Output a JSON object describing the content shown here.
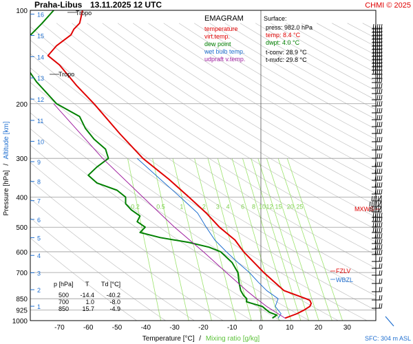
{
  "header": {
    "station": "Praha-Libus",
    "datetime": "13.11.2025 12 UTC",
    "credit": "CHMI © 2025"
  },
  "legend": {
    "title": "EMAGRAM",
    "items": [
      {
        "label": "temperature",
        "color": "#e00000"
      },
      {
        "label": "virt.temp.",
        "color": "#e00000"
      },
      {
        "label": "dew point",
        "color": "#008000"
      },
      {
        "label": "wet bulb temp.",
        "color": "#1f6fd0"
      },
      {
        "label": "udpraft v.temp.",
        "color": "#a020a0"
      }
    ]
  },
  "surface": {
    "title": "Surface:",
    "press": "press: 982.0 hPa",
    "temp": "temp: 8.4 °C",
    "dwpt": "dwpt: 4.0 °C",
    "tconv": "t-conv: 28.9 °C",
    "tmxfc": "t-mxfc: 29.8 °C"
  },
  "table": {
    "headers": [
      "p [hPa]",
      "T",
      "Td [°C]"
    ],
    "rows": [
      [
        "500",
        "-14.4",
        "-40.2"
      ],
      [
        "700",
        "1.0",
        "-8.0"
      ],
      [
        "850",
        "15.7",
        "-4.9"
      ]
    ]
  },
  "markers": {
    "mxws": "MXWS",
    "fzlv": "FZLV",
    "wbzl": "WBZL",
    "tropo": "Tropo",
    "sfc": "SFC: 304 m ASL"
  },
  "axes": {
    "xlabel": "Temperature [°C]",
    "xlabel_sep": "/",
    "xlabel2": "Mixing ratio [g/kg]",
    "ylabel": "Pressure [hPa]",
    "ylabel_sep": "/",
    "ylabel2": "Altitude [km]"
  },
  "colors": {
    "temperature": "#e00000",
    "dewpoint": "#008000",
    "wetbulb": "#1f6fd0",
    "parcel": "#a020a0",
    "mixing": "#9be36b",
    "altitude": "#1f6fd0",
    "grid": "#999999"
  },
  "chart_data": {
    "type": "line",
    "title": "Praha-Libus 13.11.2025 12 UTC",
    "xlabel": "Temperature [°C] / Mixing ratio [g/kg]",
    "ylabel": "Pressure [hPa] / Altitude [km]",
    "xlim": [
      -80,
      40
    ],
    "ylim": [
      1000,
      100
    ],
    "y_scale": "log",
    "grid": true,
    "x_ticks": [
      -70,
      -60,
      -50,
      -40,
      -30,
      -20,
      -10,
      0,
      10,
      20,
      30
    ],
    "pressure_ticks": [
      100,
      200,
      300,
      400,
      500,
      600,
      700,
      850,
      925,
      1000
    ],
    "altitude_ticks_km": [
      1,
      2,
      3,
      4,
      5,
      6,
      7,
      8,
      9,
      10,
      11,
      12,
      13,
      14,
      15,
      16
    ],
    "mixing_ratio_lines_gkg": [
      0.2,
      0.5,
      1,
      2,
      3,
      4,
      6,
      8,
      10,
      12,
      15,
      20,
      25
    ],
    "series": [
      {
        "name": "temperature",
        "points": [
          [
            982,
            8.4
          ],
          [
            950,
            12.5
          ],
          [
            925,
            15.0
          ],
          [
            900,
            17.0
          ],
          [
            880,
            17.5
          ],
          [
            860,
            17.0
          ],
          [
            850,
            15.7
          ],
          [
            800,
            8.0
          ],
          [
            700,
            1.0
          ],
          [
            600,
            -6.0
          ],
          [
            550,
            -9.0
          ],
          [
            500,
            -14.4
          ],
          [
            450,
            -19.0
          ],
          [
            400,
            -25.0
          ],
          [
            350,
            -32.0
          ],
          [
            300,
            -41.0
          ],
          [
            250,
            -49.0
          ],
          [
            200,
            -58.0
          ],
          [
            175,
            -64.0
          ],
          [
            150,
            -70.0
          ],
          [
            140,
            -74.0
          ],
          [
            130,
            -71.0
          ],
          [
            120,
            -66.0
          ],
          [
            115,
            -65.0
          ],
          [
            110,
            -63.0
          ],
          [
            105,
            -62.5
          ],
          [
            100,
            -62.0
          ]
        ]
      },
      {
        "name": "dew point",
        "points": [
          [
            982,
            4.0
          ],
          [
            960,
            5.5
          ],
          [
            940,
            3.0
          ],
          [
            925,
            2.0
          ],
          [
            900,
            0.5
          ],
          [
            870,
            -5.0
          ],
          [
            850,
            -4.9
          ],
          [
            830,
            -6.0
          ],
          [
            800,
            -7.0
          ],
          [
            760,
            -7.5
          ],
          [
            700,
            -8.0
          ],
          [
            650,
            -10.0
          ],
          [
            600,
            -14.0
          ],
          [
            580,
            -18.0
          ],
          [
            560,
            -25.0
          ],
          [
            540,
            -35.0
          ],
          [
            520,
            -42.0
          ],
          [
            500,
            -40.2
          ],
          [
            480,
            -43.0
          ],
          [
            460,
            -42.0
          ],
          [
            440,
            -45.0
          ],
          [
            420,
            -47.0
          ],
          [
            400,
            -47.0
          ],
          [
            380,
            -50.0
          ],
          [
            360,
            -57.0
          ],
          [
            340,
            -60.0
          ],
          [
            320,
            -57.0
          ],
          [
            300,
            -53.0
          ],
          [
            280,
            -54.0
          ],
          [
            260,
            -58.0
          ],
          [
            240,
            -61.0
          ],
          [
            220,
            -63.0
          ],
          [
            200,
            -71.0
          ],
          [
            170,
            -78.0
          ],
          [
            150,
            -82.0
          ],
          [
            140,
            -85.0
          ],
          [
            130,
            -84.0
          ],
          [
            120,
            -80.0
          ],
          [
            110,
            -76.0
          ],
          [
            100,
            -72.0
          ]
        ]
      },
      {
        "name": "wet bulb temp.",
        "points": [
          [
            982,
            6.0
          ],
          [
            950,
            7.0
          ],
          [
            900,
            5.0
          ],
          [
            850,
            6.0
          ],
          [
            800,
            2.0
          ],
          [
            750,
            -1.0
          ],
          [
            700,
            -4.0
          ],
          [
            650,
            -8.0
          ],
          [
            600,
            -12.0
          ],
          [
            550,
            -16.0
          ],
          [
            500,
            -19.0
          ],
          [
            450,
            -22.0
          ],
          [
            400,
            -28.0
          ],
          [
            350,
            -35.0
          ],
          [
            300,
            -43.0
          ]
        ]
      },
      {
        "name": "udpraft v.temp.",
        "points": [
          [
            982,
            8.4
          ],
          [
            950,
            6.0
          ],
          [
            900,
            2.0
          ],
          [
            850,
            -1.5
          ],
          [
            800,
            -5.0
          ],
          [
            700,
            -12.0
          ],
          [
            600,
            -20.0
          ],
          [
            500,
            -30.0
          ],
          [
            400,
            -41.0
          ],
          [
            300,
            -55.0
          ],
          [
            200,
            -72.0
          ]
        ]
      }
    ],
    "annotations": [
      "Tropo",
      "Tropo",
      "MXWS",
      "FZLV",
      "WBZL",
      "SFC: 304 m ASL"
    ]
  }
}
